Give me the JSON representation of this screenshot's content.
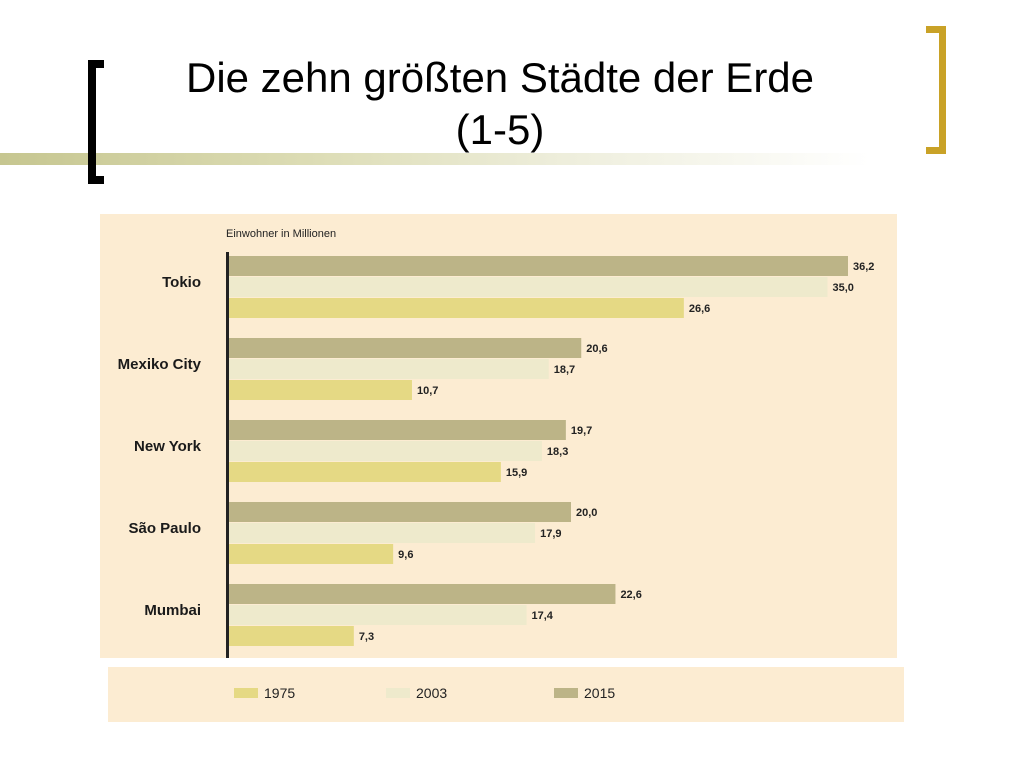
{
  "slide": {
    "title_line1": "Die zehn größten Städte der Erde",
    "title_line2": "(1-5)"
  },
  "colors": {
    "bracket_left": "#000000",
    "bracket_right": "#c9a227",
    "panel_bg": "#fcecd2"
  },
  "chart_data": {
    "type": "bar",
    "orientation": "horizontal",
    "unit_label": "Einwohner in Millionen",
    "categories": [
      "Tokio",
      "Mexiko City",
      "New York",
      "São Paulo",
      "Mumbai"
    ],
    "series": [
      {
        "name": "2015",
        "color": "#bcb487",
        "values": [
          36.2,
          20.6,
          19.7,
          20.0,
          22.6
        ],
        "labels": [
          "36,2",
          "20,6",
          "19,7",
          "20,0",
          "22,6"
        ]
      },
      {
        "name": "2003",
        "color": "#eeeacc",
        "values": [
          35.0,
          18.7,
          18.3,
          17.9,
          17.4
        ],
        "labels": [
          "35,0",
          "18,7",
          "18,3",
          "17,9",
          "17,4"
        ]
      },
      {
        "name": "1975",
        "color": "#e5d984",
        "values": [
          26.6,
          10.7,
          15.9,
          9.6,
          7.3
        ],
        "labels": [
          "26,6",
          "10,7",
          "15,9",
          "9,6",
          "7,3"
        ]
      }
    ],
    "legend_order": [
      "1975",
      "2003",
      "2015"
    ],
    "legend_position": "bottom",
    "xlim": [
      0,
      36.2
    ],
    "grid": false
  }
}
